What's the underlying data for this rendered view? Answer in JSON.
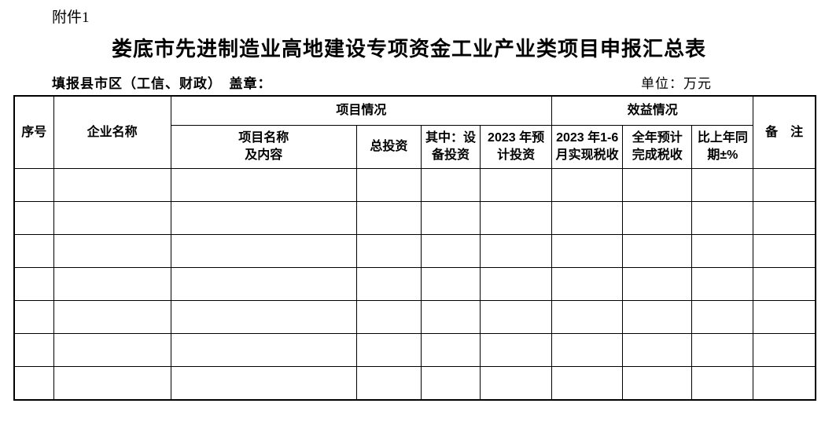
{
  "page": {
    "attachment_label": "附件1",
    "title": "娄底市先进制造业高地建设专项资金工业产业类项目申报汇总表",
    "fill_label": "填报县市区（工信、财政）　盖章：",
    "unit_label": "单位：万元"
  },
  "table": {
    "headers": {
      "serial": "序号",
      "enterprise": "企业名称",
      "project_group": "项目情况",
      "benefit_group": "效益情况",
      "remark": "备　注",
      "project_name": "项目名称\n及内容",
      "total_investment": "总投资",
      "equipment_investment": "其中：设\n备投资",
      "investment_2023": "2023 年预\n计投资",
      "tax_jan_jun_2023": "2023 年1-6\n月实现税收",
      "tax_full_year": "全年预计\n完成税收",
      "yoy_change": "比上年同\n期±%"
    },
    "body_rows": [
      [
        "",
        "",
        "",
        "",
        "",
        "",
        "",
        "",
        "",
        ""
      ],
      [
        "",
        "",
        "",
        "",
        "",
        "",
        "",
        "",
        "",
        ""
      ],
      [
        "",
        "",
        "",
        "",
        "",
        "",
        "",
        "",
        "",
        ""
      ],
      [
        "",
        "",
        "",
        "",
        "",
        "",
        "",
        "",
        "",
        ""
      ],
      [
        "",
        "",
        "",
        "",
        "",
        "",
        "",
        "",
        "",
        ""
      ],
      [
        "",
        "",
        "",
        "",
        "",
        "",
        "",
        "",
        "",
        ""
      ],
      [
        "",
        "",
        "",
        "",
        "",
        "",
        "",
        "",
        "",
        ""
      ]
    ]
  }
}
